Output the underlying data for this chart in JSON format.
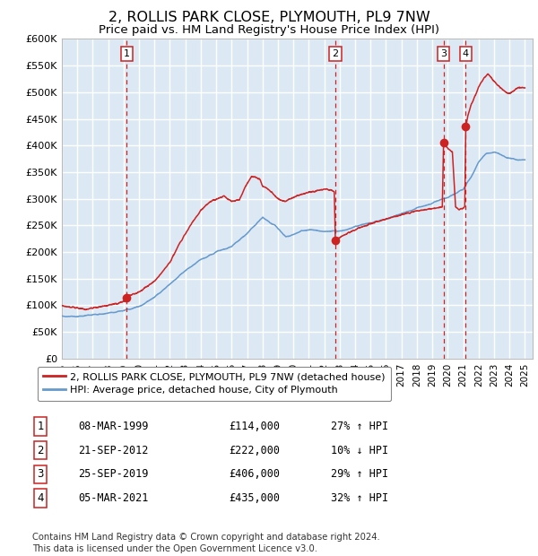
{
  "title": "2, ROLLIS PARK CLOSE, PLYMOUTH, PL9 7NW",
  "subtitle": "Price paid vs. HM Land Registry's House Price Index (HPI)",
  "title_fontsize": 11.5,
  "subtitle_fontsize": 9.5,
  "background_color": "#ffffff",
  "plot_bg_color": "#dce9f5",
  "grid_color": "#ffffff",
  "hpi_line_color": "#6699cc",
  "price_line_color": "#cc2222",
  "dot_color": "#cc2222",
  "vline_color": "#cc2222",
  "ylim": [
    0,
    600000
  ],
  "yticks": [
    0,
    50000,
    100000,
    150000,
    200000,
    250000,
    300000,
    350000,
    400000,
    450000,
    500000,
    550000,
    600000
  ],
  "xlim_start": 1995.0,
  "xlim_end": 2025.5,
  "sale_dates": [
    1999.19,
    2012.72,
    2019.73,
    2021.17
  ],
  "sale_prices": [
    114000,
    222000,
    406000,
    435000
  ],
  "sale_labels": [
    "1",
    "2",
    "3",
    "4"
  ],
  "sale_date_strs": [
    "08-MAR-1999",
    "21-SEP-2012",
    "25-SEP-2019",
    "05-MAR-2021"
  ],
  "sale_price_strs": [
    "£114,000",
    "£222,000",
    "£406,000",
    "£435,000"
  ],
  "sale_hpi_strs": [
    "27% ↑ HPI",
    "10% ↓ HPI",
    "29% ↑ HPI",
    "32% ↑ HPI"
  ],
  "legend_label_price": "2, ROLLIS PARK CLOSE, PLYMOUTH, PL9 7NW (detached house)",
  "legend_label_hpi": "HPI: Average price, detached house, City of Plymouth",
  "footnote": "Contains HM Land Registry data © Crown copyright and database right 2024.\nThis data is licensed under the Open Government Licence v3.0."
}
